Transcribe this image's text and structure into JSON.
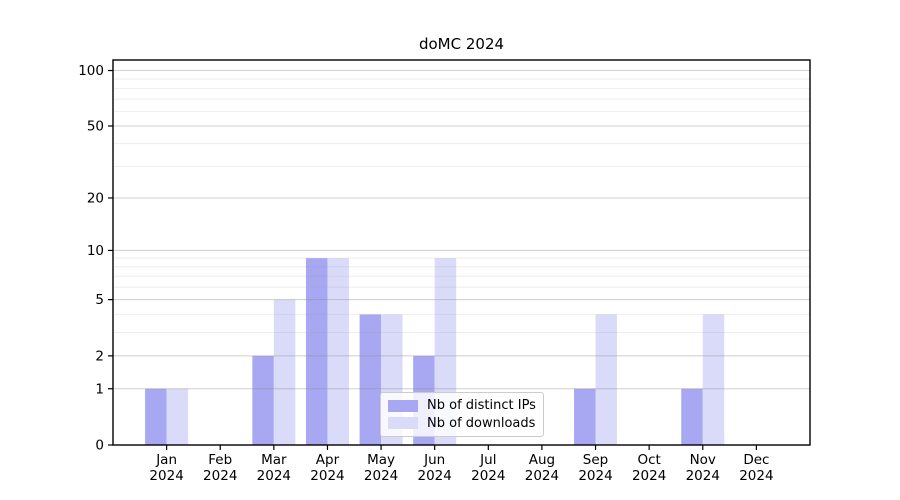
{
  "figure": {
    "background": "#ffffff"
  },
  "chart_data": {
    "type": "bar",
    "title": "doMC 2024",
    "categories": [
      "Jan 2024",
      "Feb 2024",
      "Mar 2024",
      "Apr 2024",
      "May 2024",
      "Jun 2024",
      "Jul 2024",
      "Aug 2024",
      "Sep 2024",
      "Oct 2024",
      "Nov 2024",
      "Dec 2024"
    ],
    "series": [
      {
        "name": "Nb of distinct IPs",
        "color": "#a7a7f2",
        "values": [
          1,
          0,
          2,
          9,
          4,
          2,
          0,
          0,
          1,
          0,
          1,
          0
        ]
      },
      {
        "name": "Nb of downloads",
        "color": "#d9dbf9",
        "values": [
          1,
          0,
          5,
          9,
          4,
          9,
          0,
          0,
          4,
          0,
          4,
          0
        ]
      }
    ],
    "xlabel": "",
    "ylabel": "",
    "yscale": "log1p",
    "ylim": [
      0,
      114
    ],
    "yticks_major": [
      0,
      1,
      2,
      5,
      10,
      20,
      50,
      100
    ],
    "yticks_minor": [
      3,
      4,
      6,
      7,
      8,
      9,
      30,
      40,
      60,
      70,
      80,
      90
    ],
    "grid": true,
    "grid_on_top": true,
    "legend_position": "lower center"
  },
  "colors": {
    "axis": "#000000",
    "grid_major": "rgba(140,140,140,0.42)",
    "grid_minor": "rgba(160,160,160,0.18)",
    "tick_label": "#000000"
  }
}
